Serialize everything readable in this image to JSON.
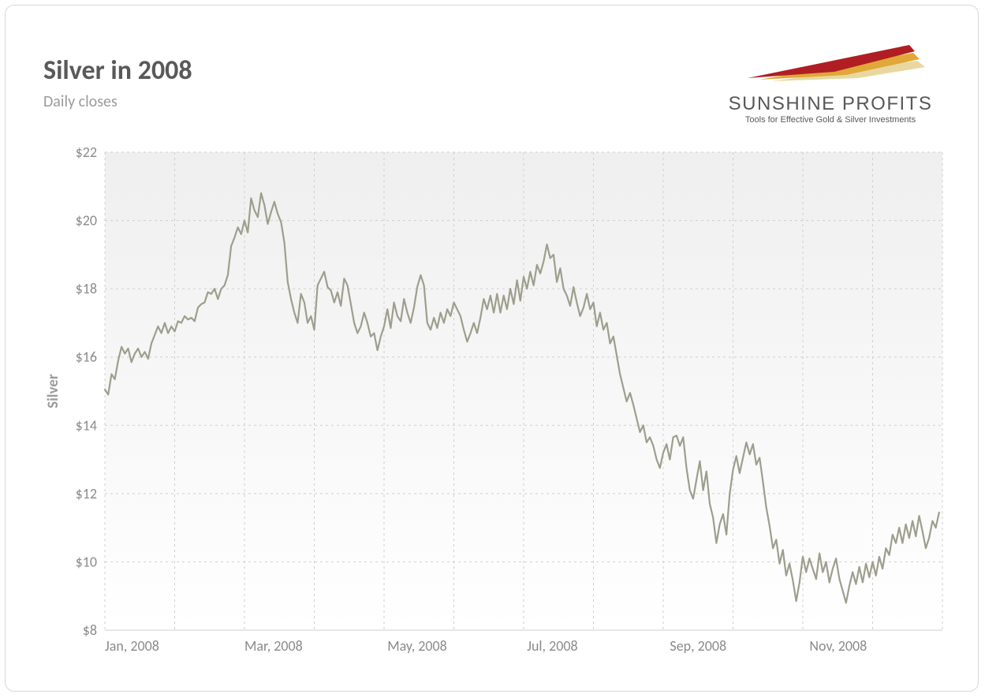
{
  "title": "Silver in 2008",
  "subtitle": "Daily closes",
  "logo": {
    "brand": "SUNSHINE PROFITS",
    "tagline": "Tools for Effective Gold & Silver Investments",
    "ray_colors": [
      "#b01e23",
      "#e0a838",
      "#e8d8a0"
    ]
  },
  "chart": {
    "type": "line",
    "y_axis_title": "Silver",
    "ylim": [
      8,
      22
    ],
    "ytick_step": 2,
    "y_ticks": [
      8,
      10,
      12,
      14,
      16,
      18,
      20,
      22
    ],
    "y_tick_labels": [
      "$8",
      "$10",
      "$12",
      "$14",
      "$16",
      "$18",
      "$20",
      "$22"
    ],
    "xlim": [
      0,
      252
    ],
    "x_major_ticks": [
      0,
      42,
      85,
      127,
      170,
      212
    ],
    "x_tick_labels": [
      "Jan, 2008",
      "Mar, 2008",
      "May, 2008",
      "Jul, 2008",
      "Sep, 2008",
      "Nov, 2008"
    ],
    "x_minor_divisions": 12,
    "line_color": "#9e9e8e",
    "line_width": 2.2,
    "plot_background_top": "#efefef",
    "plot_background_bottom": "#ffffff",
    "grid_color": "#cfcfcf",
    "grid_dash": "3 4",
    "card_border_color": "#d8d8d8",
    "card_background": "#ffffff",
    "title_color": "#595959",
    "subtitle_color": "#9b9b9b",
    "tick_label_color": "#8a8a8a",
    "title_fontsize": 34,
    "subtitle_fontsize": 20,
    "tick_label_fontsize": 18,
    "y_axis_title_fontsize": 19,
    "values": [
      15.05,
      14.9,
      15.5,
      15.35,
      15.9,
      16.3,
      16.1,
      16.25,
      15.85,
      16.1,
      16.25,
      16.0,
      16.15,
      15.95,
      16.4,
      16.65,
      16.9,
      16.7,
      17.0,
      16.7,
      16.9,
      16.75,
      17.05,
      17.0,
      17.2,
      17.1,
      17.15,
      17.05,
      17.45,
      17.55,
      17.6,
      17.9,
      17.85,
      18.0,
      17.7,
      18.0,
      18.1,
      18.4,
      19.25,
      19.5,
      19.8,
      19.6,
      20.0,
      19.65,
      20.65,
      20.3,
      20.1,
      20.8,
      20.45,
      19.9,
      20.25,
      20.55,
      20.2,
      19.95,
      19.35,
      18.2,
      17.7,
      17.3,
      17.0,
      17.85,
      17.6,
      17.0,
      17.2,
      16.8,
      18.1,
      18.3,
      18.5,
      18.05,
      17.95,
      17.6,
      17.9,
      17.5,
      18.3,
      18.1,
      17.55,
      17.0,
      16.7,
      16.9,
      17.3,
      17.0,
      16.6,
      16.7,
      16.2,
      16.6,
      16.9,
      17.4,
      16.85,
      17.6,
      17.2,
      17.05,
      17.7,
      17.3,
      17.0,
      17.45,
      18.05,
      18.4,
      18.1,
      17.0,
      16.8,
      17.15,
      16.85,
      17.3,
      17.0,
      17.4,
      17.2,
      17.6,
      17.4,
      17.2,
      16.8,
      16.45,
      16.7,
      17.0,
      16.7,
      17.15,
      17.7,
      17.4,
      17.8,
      17.3,
      17.85,
      17.3,
      17.8,
      17.4,
      18.0,
      17.55,
      18.25,
      17.65,
      18.35,
      18.0,
      18.5,
      18.1,
      18.7,
      18.45,
      18.8,
      19.3,
      18.9,
      19.0,
      18.2,
      18.6,
      18.0,
      17.8,
      17.5,
      18.05,
      17.6,
      17.2,
      17.45,
      17.85,
      17.4,
      17.6,
      16.9,
      17.3,
      16.8,
      17.0,
      16.4,
      16.6,
      16.05,
      15.5,
      15.1,
      14.7,
      14.95,
      14.6,
      14.2,
      13.8,
      14.0,
      13.5,
      13.65,
      13.4,
      13.0,
      12.75,
      13.2,
      13.45,
      13.0,
      13.65,
      13.7,
      13.4,
      13.65,
      12.75,
      12.1,
      11.85,
      12.4,
      12.95,
      12.1,
      12.65,
      11.7,
      11.3,
      10.55,
      11.1,
      11.4,
      10.8,
      12.0,
      12.7,
      13.1,
      12.6,
      13.05,
      13.5,
      13.15,
      13.45,
      12.85,
      13.05,
      12.35,
      11.6,
      11.05,
      10.4,
      10.65,
      9.95,
      10.35,
      9.6,
      9.95,
      9.45,
      8.85,
      9.4,
      10.15,
      9.7,
      10.1,
      9.8,
      9.5,
      10.25,
      9.7,
      10.0,
      9.4,
      9.8,
      10.1,
      9.5,
      9.15,
      8.8,
      9.3,
      9.7,
      9.35,
      9.85,
      9.4,
      9.95,
      9.55,
      10.0,
      9.6,
      10.15,
      9.8,
      10.4,
      10.2,
      10.8,
      10.55,
      11.0,
      10.55,
      11.1,
      10.7,
      11.2,
      10.75,
      11.35,
      10.9,
      10.4,
      10.7,
      11.2,
      11.0,
      11.45
    ]
  }
}
